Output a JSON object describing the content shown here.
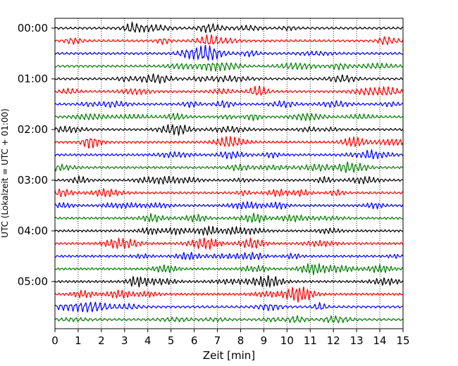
{
  "chart_data": {
    "type": "line",
    "title": "",
    "xlabel": "Zeit  [min]",
    "ylabel": "UTC (Lokalzeit = UTC + 01:00)",
    "xlim": [
      0,
      15
    ],
    "x_ticks": [
      "0",
      "1",
      "2",
      "3",
      "4",
      "5",
      "6",
      "7",
      "8",
      "9",
      "10",
      "11",
      "12",
      "13",
      "14",
      "15"
    ],
    "y_ticks": [
      "00:00",
      "01:00",
      "02:00",
      "03:00",
      "04:00",
      "05:00"
    ],
    "grid": "vertical dotted",
    "trace_colors": [
      "#000000",
      "#ff0000",
      "#0000ff",
      "#007f00"
    ],
    "traces": [
      {
        "start": "00:00",
        "color": "#000000"
      },
      {
        "start": "00:15",
        "color": "#ff0000"
      },
      {
        "start": "00:30",
        "color": "#0000ff"
      },
      {
        "start": "00:45",
        "color": "#007f00"
      },
      {
        "start": "01:00",
        "color": "#000000"
      },
      {
        "start": "01:15",
        "color": "#ff0000"
      },
      {
        "start": "01:30",
        "color": "#0000ff"
      },
      {
        "start": "01:45",
        "color": "#007f00"
      },
      {
        "start": "02:00",
        "color": "#000000"
      },
      {
        "start": "02:15",
        "color": "#ff0000"
      },
      {
        "start": "02:30",
        "color": "#0000ff"
      },
      {
        "start": "02:45",
        "color": "#007f00"
      },
      {
        "start": "03:00",
        "color": "#000000"
      },
      {
        "start": "03:15",
        "color": "#ff0000"
      },
      {
        "start": "03:30",
        "color": "#0000ff"
      },
      {
        "start": "03:45",
        "color": "#007f00"
      },
      {
        "start": "04:00",
        "color": "#000000"
      },
      {
        "start": "04:15",
        "color": "#ff0000"
      },
      {
        "start": "04:30",
        "color": "#0000ff"
      },
      {
        "start": "04:45",
        "color": "#007f00"
      },
      {
        "start": "05:00",
        "color": "#000000"
      },
      {
        "start": "05:15",
        "color": "#ff0000"
      },
      {
        "start": "05:30",
        "color": "#0000ff"
      },
      {
        "start": "05:45",
        "color": "#007f00"
      }
    ]
  }
}
